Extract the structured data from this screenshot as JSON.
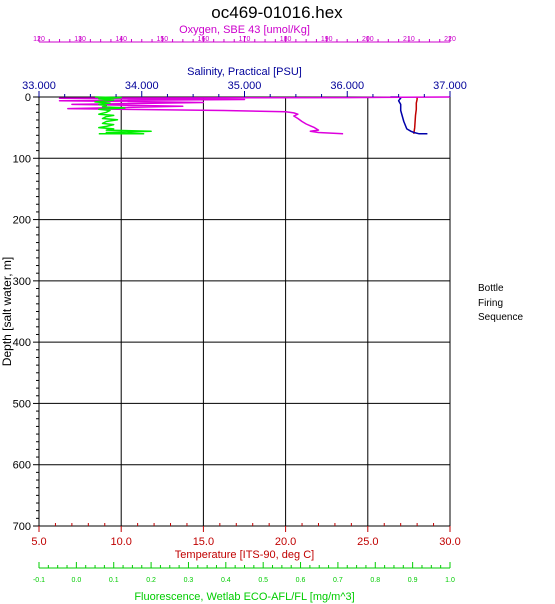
{
  "chart_data": {
    "type": "line",
    "title": "oc469-01016.hex",
    "side_labels": [
      "Bottle",
      "Firing",
      "Sequence"
    ],
    "y_axis": {
      "label": "Depth [salt water, m]",
      "range": [
        0,
        700
      ],
      "inverted": true,
      "ticks": [
        0,
        100,
        200,
        300,
        400,
        500,
        600,
        700
      ],
      "tick_labels": [
        "0",
        "100",
        "200",
        "300",
        "400",
        "500",
        "600",
        "700"
      ],
      "color": "#000000"
    },
    "x_axes": [
      {
        "id": "temperature",
        "position": "bottom",
        "label": "Temperature [ITS-90, deg C]",
        "color": "#c00000",
        "range": [
          5.0,
          30.0
        ],
        "ticks": [
          5.0,
          10.0,
          15.0,
          20.0,
          25.0,
          30.0
        ],
        "tick_labels": [
          "5.0",
          "10.0",
          "15.0",
          "20.0",
          "25.0",
          "30.0"
        ],
        "gridlines": true
      },
      {
        "id": "fluorescence",
        "position": "bottom2",
        "label": "Fluorescence, Wetlab ECO-AFL/FL [mg/m^3]",
        "color": "#00cc00",
        "range": [
          -0.1,
          1.0
        ],
        "ticks": [
          -0.1,
          0.0,
          0.1,
          0.2,
          0.3,
          0.4,
          0.5,
          0.6,
          0.7,
          0.8,
          0.9,
          1.0
        ],
        "tick_labels": [
          "-0.1",
          "0.0",
          "0.1",
          "0.2",
          "0.3",
          "0.4",
          "0.5",
          "0.6",
          "0.7",
          "0.8",
          "0.9",
          "1.0"
        ]
      },
      {
        "id": "oxygen",
        "position": "top",
        "label": "Oxygen, SBE 43 [umol/Kg]",
        "color": "#cc00cc",
        "range": [
          120,
          220
        ],
        "ticks": [
          120,
          130,
          140,
          150,
          160,
          170,
          180,
          190,
          200,
          210,
          220
        ],
        "tick_labels": [
          "120",
          "130",
          "140",
          "150",
          "160",
          "170",
          "180",
          "190",
          "200",
          "210",
          "220"
        ]
      },
      {
        "id": "salinity",
        "position": "top2",
        "label": "Salinity, Practical [PSU]",
        "color": "#000099",
        "range": [
          33.0,
          37.0
        ],
        "ticks": [
          33.0,
          34.0,
          35.0,
          36.0,
          37.0
        ],
        "tick_labels": [
          "33.000",
          "34.000",
          "35.000",
          "36.000",
          "37.000"
        ]
      }
    ],
    "series": [
      {
        "axis": "temperature",
        "color": "#c00000",
        "points": [
          [
            28.0,
            0
          ],
          [
            28.0,
            2
          ],
          [
            28.0,
            4
          ],
          [
            27.95,
            10
          ],
          [
            27.95,
            20
          ],
          [
            27.9,
            30
          ],
          [
            27.85,
            50
          ],
          [
            27.8,
            60
          ]
        ]
      },
      {
        "axis": "salinity",
        "color": "#0000aa",
        "points": [
          [
            36.42,
            0
          ],
          [
            36.5,
            0
          ],
          [
            36.52,
            2
          ],
          [
            36.5,
            6
          ],
          [
            36.52,
            12
          ],
          [
            36.52,
            22
          ],
          [
            36.55,
            40
          ],
          [
            36.58,
            52
          ],
          [
            36.62,
            56
          ],
          [
            36.65,
            58
          ],
          [
            36.7,
            60
          ],
          [
            36.78,
            60
          ]
        ]
      },
      {
        "axis": "oxygen",
        "color": "#dd00dd",
        "points": [
          [
            220,
            0
          ],
          [
            195,
            1
          ],
          [
            125,
            2
          ],
          [
            170,
            4
          ],
          [
            125,
            6
          ],
          [
            160,
            9
          ],
          [
            128,
            12
          ],
          [
            155,
            15
          ],
          [
            127,
            19
          ],
          [
            165,
            22
          ],
          [
            180,
            24
          ],
          [
            182,
            26
          ],
          [
            183,
            28
          ],
          [
            182,
            31
          ],
          [
            183,
            35
          ],
          [
            184,
            40
          ],
          [
            185,
            44
          ],
          [
            186,
            47
          ],
          [
            187,
            50
          ],
          [
            188,
            54
          ],
          [
            186,
            56
          ],
          [
            188,
            58
          ],
          [
            194,
            60
          ]
        ]
      },
      {
        "axis": "fluorescence",
        "color": "#00ee00",
        "points": [
          [
            0.05,
            0
          ],
          [
            0.12,
            1
          ],
          [
            0.06,
            3
          ],
          [
            0.1,
            5
          ],
          [
            0.05,
            8
          ],
          [
            0.09,
            10
          ],
          [
            0.06,
            12
          ],
          [
            0.08,
            14
          ],
          [
            0.07,
            16
          ],
          [
            0.13,
            18
          ],
          [
            0.06,
            20
          ],
          [
            0.09,
            22
          ],
          [
            0.08,
            25
          ],
          [
            0.06,
            28
          ],
          [
            0.1,
            30
          ],
          [
            0.08,
            32
          ],
          [
            0.07,
            35
          ],
          [
            0.11,
            37
          ],
          [
            0.08,
            40
          ],
          [
            0.07,
            43
          ],
          [
            0.1,
            45
          ],
          [
            0.08,
            48
          ],
          [
            0.06,
            50
          ],
          [
            0.1,
            52
          ],
          [
            0.08,
            54
          ],
          [
            0.2,
            56
          ],
          [
            0.08,
            58
          ],
          [
            0.18,
            60
          ],
          [
            0.06,
            60
          ]
        ]
      }
    ]
  }
}
